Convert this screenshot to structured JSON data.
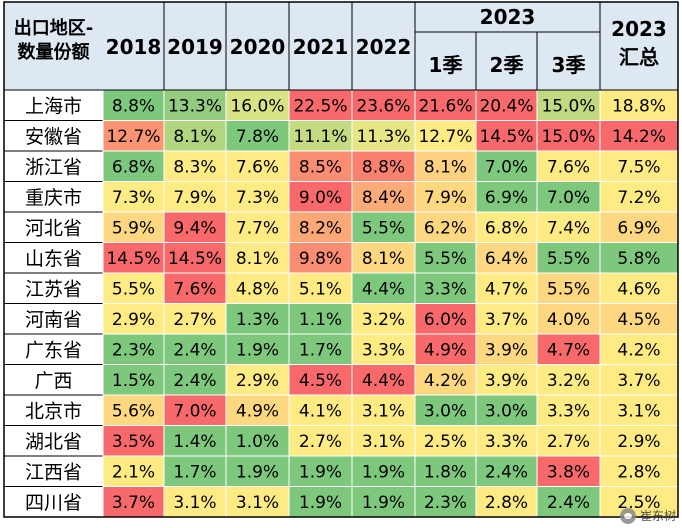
{
  "chart_data": {
    "type": "heatmap",
    "corner_label": [
      "出口地区-",
      "数量份额"
    ],
    "group_header": "2023",
    "columns": [
      "2018",
      "2019",
      "2020",
      "2021",
      "2022",
      "1季",
      "2季",
      "3季",
      "2023\n汇总"
    ],
    "rows": [
      {
        "region": "上海市",
        "values": [
          "8.8%",
          "13.3%",
          "16.0%",
          "22.5%",
          "23.6%",
          "21.6%",
          "20.4%",
          "15.0%",
          "18.8%"
        ]
      },
      {
        "region": "安徽省",
        "values": [
          "12.7%",
          "8.1%",
          "7.8%",
          "11.1%",
          "11.3%",
          "12.7%",
          "14.5%",
          "15.0%",
          "14.2%"
        ]
      },
      {
        "region": "浙江省",
        "values": [
          "6.8%",
          "8.3%",
          "7.6%",
          "8.5%",
          "8.8%",
          "8.1%",
          "7.0%",
          "7.6%",
          "7.5%"
        ]
      },
      {
        "region": "重庆市",
        "values": [
          "7.3%",
          "7.9%",
          "7.3%",
          "9.0%",
          "8.4%",
          "7.9%",
          "6.9%",
          "7.0%",
          "7.2%"
        ]
      },
      {
        "region": "河北省",
        "values": [
          "5.9%",
          "9.4%",
          "7.7%",
          "8.2%",
          "5.5%",
          "6.2%",
          "6.8%",
          "7.4%",
          "6.9%"
        ]
      },
      {
        "region": "山东省",
        "values": [
          "14.5%",
          "14.5%",
          "8.1%",
          "9.8%",
          "8.1%",
          "5.5%",
          "6.4%",
          "5.5%",
          "5.8%"
        ]
      },
      {
        "region": "江苏省",
        "values": [
          "5.5%",
          "7.6%",
          "4.8%",
          "5.1%",
          "4.4%",
          "3.3%",
          "4.7%",
          "5.5%",
          "4.6%"
        ]
      },
      {
        "region": "河南省",
        "values": [
          "2.9%",
          "2.7%",
          "1.3%",
          "1.1%",
          "3.2%",
          "6.0%",
          "3.7%",
          "4.0%",
          "4.5%"
        ]
      },
      {
        "region": "广东省",
        "values": [
          "2.3%",
          "2.4%",
          "1.9%",
          "1.7%",
          "3.3%",
          "4.9%",
          "3.9%",
          "4.7%",
          "4.2%"
        ]
      },
      {
        "region": "广西",
        "values": [
          "1.5%",
          "2.4%",
          "2.9%",
          "4.5%",
          "4.4%",
          "4.2%",
          "3.9%",
          "3.2%",
          "3.7%"
        ]
      },
      {
        "region": "北京市",
        "values": [
          "5.6%",
          "7.0%",
          "4.9%",
          "4.1%",
          "3.1%",
          "3.0%",
          "3.0%",
          "3.3%",
          "3.1%"
        ]
      },
      {
        "region": "湖北省",
        "values": [
          "3.5%",
          "1.4%",
          "1.0%",
          "2.7%",
          "3.1%",
          "2.5%",
          "3.3%",
          "2.7%",
          "2.9%"
        ]
      },
      {
        "region": "江西省",
        "values": [
          "2.1%",
          "1.7%",
          "1.9%",
          "1.9%",
          "1.9%",
          "1.8%",
          "2.4%",
          "3.8%",
          "2.8%"
        ]
      },
      {
        "region": "四川省",
        "values": [
          "3.7%",
          "3.1%",
          "3.1%",
          "1.9%",
          "1.9%",
          "2.3%",
          "2.8%",
          "2.4%",
          "2.5%"
        ]
      }
    ],
    "cell_colors": [
      [
        "#7ec87e",
        "#93cc7e",
        "#d8e483",
        "#f8696b",
        "#f8696b",
        "#f8696b",
        "#f8696b",
        "#c0da81",
        "#ffeb84"
      ],
      [
        "#fa9473",
        "#b2d67f",
        "#7ec87e",
        "#c4db81",
        "#e7e684",
        "#ffeb84",
        "#f8696b",
        "#f8696b",
        "#f8696b"
      ],
      [
        "#7ec87e",
        "#ffeb84",
        "#ffeb84",
        "#fa8d72",
        "#fa8070",
        "#fed280",
        "#7ec87e",
        "#ffeb84",
        "#ffeb84"
      ],
      [
        "#ffeb84",
        "#ffeb84",
        "#ffeb84",
        "#f8696b",
        "#fbab77",
        "#fed880",
        "#7ec87e",
        "#7ec87e",
        "#ffeb84"
      ],
      [
        "#fed880",
        "#f8696b",
        "#ffeb84",
        "#fba876",
        "#7ec87e",
        "#fed880",
        "#ffeb84",
        "#ffeb84",
        "#fed880"
      ],
      [
        "#f8696b",
        "#f8696b",
        "#ffeb84",
        "#fa8d72",
        "#fed880",
        "#7ec87e",
        "#fed880",
        "#7ec87e",
        "#7ec87e"
      ],
      [
        "#ffeb84",
        "#f8696b",
        "#ffeb84",
        "#ffeb84",
        "#7ec87e",
        "#7ec87e",
        "#ffeb84",
        "#fed880",
        "#ffeb84"
      ],
      [
        "#ffeb84",
        "#ffeb84",
        "#7ec87e",
        "#7ec87e",
        "#ffeb84",
        "#f8696b",
        "#ffeb84",
        "#fed880",
        "#fed880"
      ],
      [
        "#7ec87e",
        "#7ec87e",
        "#7ec87e",
        "#7ec87e",
        "#ffeb84",
        "#f8696b",
        "#fed880",
        "#f8696b",
        "#ffeb84"
      ],
      [
        "#7ec87e",
        "#7ec87e",
        "#ffeb84",
        "#f8696b",
        "#f8696b",
        "#fed880",
        "#ffeb84",
        "#ffeb84",
        "#ffeb84"
      ],
      [
        "#fed880",
        "#f8696b",
        "#fed880",
        "#ffeb84",
        "#ffeb84",
        "#7ec87e",
        "#7ec87e",
        "#ffeb84",
        "#ffeb84"
      ],
      [
        "#f8696b",
        "#7ec87e",
        "#7ec87e",
        "#ffeb84",
        "#ffeb84",
        "#ffeb84",
        "#ffeb84",
        "#ffeb84",
        "#ffeb84"
      ],
      [
        "#ffeb84",
        "#7ec87e",
        "#7ec87e",
        "#7ec87e",
        "#7ec87e",
        "#7ec87e",
        "#7ec87e",
        "#f8696b",
        "#ffeb84"
      ],
      [
        "#f8696b",
        "#ffeb84",
        "#ffeb84",
        "#7ec87e",
        "#7ec87e",
        "#7ec87e",
        "#ffeb84",
        "#7ec87e",
        "#ffeb84"
      ]
    ],
    "header_bg": "#dde8f3",
    "grid_color": "#ffffff",
    "border_color": "#000000"
  },
  "watermark": "崔东树"
}
